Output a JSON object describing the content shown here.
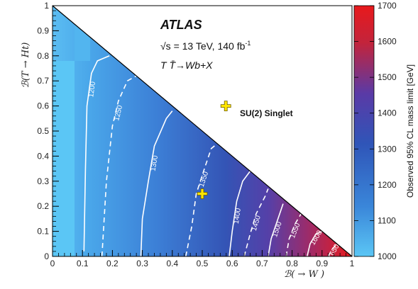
{
  "chart_data": {
    "type": "heatmap",
    "title": "ATLAS",
    "annotations": {
      "energy": "√s = 13 TeV, 140 fb",
      "energy_sup": "-1",
      "process": "T T̄→Wb+X",
      "benchmark_label": "SU(2) Singlet"
    },
    "xlabel": "ℬ(  → W )",
    "ylabel": "ℬ(T → Ht)",
    "xlim": [
      0,
      1
    ],
    "ylim": [
      0,
      1
    ],
    "x_ticks": [
      "0",
      "0.1",
      "0.2",
      "0.3",
      "0.4",
      "0.5",
      "0.6",
      "0.7",
      "0.8",
      "0.9",
      "1"
    ],
    "y_ticks": [
      "0",
      "0.1",
      "0.2",
      "0.3",
      "0.4",
      "0.5",
      "0.6",
      "0.7",
      "0.8",
      "0.9",
      "1"
    ],
    "colorbar": {
      "label": "Observed 95% CL mass limit [GeV]",
      "range": [
        1000,
        1700
      ],
      "ticks": [
        "1000",
        "1100",
        "1200",
        "1300",
        "1400",
        "1500",
        "1600",
        "1700"
      ],
      "colors": [
        "#5bc6f5",
        "#3a86d9",
        "#2f55b8",
        "#5a3aa6",
        "#c2243c",
        "#e8191c"
      ]
    },
    "contours": [
      {
        "label": "1200",
        "style": "solid",
        "points": [
          [
            0.105,
            0.02
          ],
          [
            0.11,
            0.35
          ],
          [
            0.115,
            0.6
          ],
          [
            0.13,
            0.73
          ],
          [
            0.15,
            0.78
          ],
          [
            0.19,
            0.8
          ]
        ]
      },
      {
        "label": "1250",
        "style": "dashed",
        "points": [
          [
            0.165,
            0
          ],
          [
            0.18,
            0.3
          ],
          [
            0.2,
            0.52
          ],
          [
            0.22,
            0.62
          ],
          [
            0.25,
            0.7
          ],
          [
            0.28,
            0.72
          ]
        ]
      },
      {
        "label": "1300",
        "style": "solid",
        "points": [
          [
            0.295,
            0
          ],
          [
            0.3,
            0.15
          ],
          [
            0.32,
            0.3
          ],
          [
            0.34,
            0.44
          ],
          [
            0.38,
            0.55
          ],
          [
            0.4,
            0.58
          ]
        ]
      },
      {
        "label": "1350",
        "style": "dashed",
        "points": [
          [
            0.445,
            0
          ],
          [
            0.465,
            0.12
          ],
          [
            0.48,
            0.25
          ],
          [
            0.51,
            0.36
          ],
          [
            0.53,
            0.43
          ],
          [
            0.55,
            0.45
          ]
        ]
      },
      {
        "label": "1400",
        "style": "solid",
        "points": [
          [
            0.59,
            0
          ],
          [
            0.6,
            0.1
          ],
          [
            0.615,
            0.22
          ],
          [
            0.635,
            0.3
          ],
          [
            0.66,
            0.34
          ]
        ]
      },
      {
        "label": "1450",
        "style": "dashed",
        "points": [
          [
            0.64,
            0
          ],
          [
            0.66,
            0.09
          ],
          [
            0.68,
            0.17
          ],
          [
            0.71,
            0.24
          ],
          [
            0.72,
            0.27
          ]
        ]
      },
      {
        "label": "1500",
        "style": "solid",
        "points": [
          [
            0.72,
            0
          ],
          [
            0.73,
            0.07
          ],
          [
            0.75,
            0.14
          ],
          [
            0.77,
            0.21
          ]
        ]
      },
      {
        "label": "1550",
        "style": "dashed",
        "points": [
          [
            0.78,
            0
          ],
          [
            0.79,
            0.07
          ],
          [
            0.81,
            0.13
          ],
          [
            0.83,
            0.17
          ]
        ]
      },
      {
        "label": "1600",
        "style": "solid",
        "points": [
          [
            0.85,
            0
          ],
          [
            0.86,
            0.05
          ],
          [
            0.88,
            0.09
          ],
          [
            0.9,
            0.1
          ]
        ]
      },
      {
        "label": "1650",
        "style": "dashed",
        "points": [
          [
            0.92,
            0
          ],
          [
            0.935,
            0.03
          ],
          [
            0.95,
            0.05
          ]
        ]
      }
    ],
    "benchmarks": [
      {
        "x": 0.5,
        "y": 0.25
      },
      {
        "x": 0.6,
        "y": 0.6,
        "legend": true
      }
    ]
  }
}
